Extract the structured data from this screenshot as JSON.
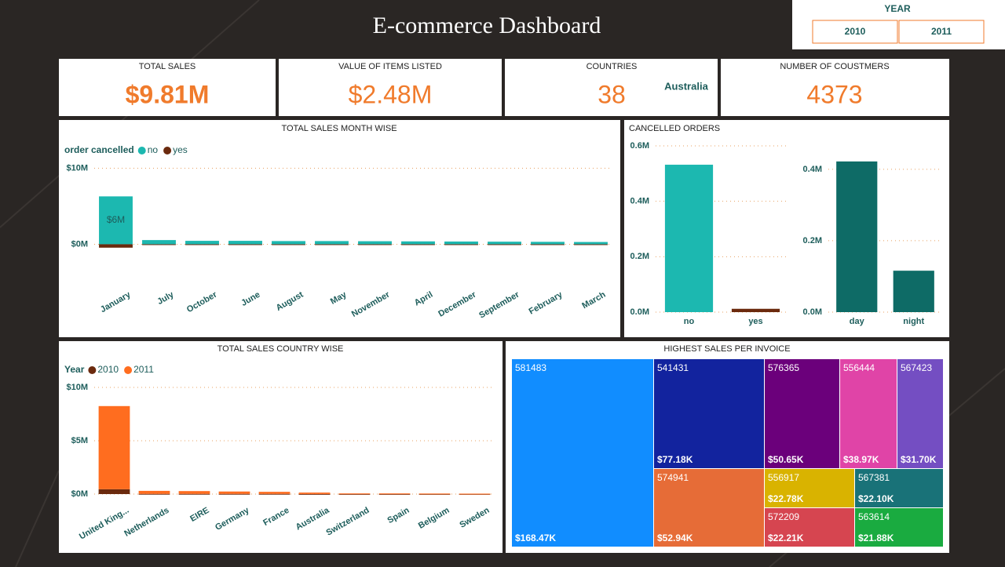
{
  "header": {
    "title": "E-commerce Dashboard"
  },
  "slicer": {
    "title": "YEAR",
    "options": [
      "2010",
      "2011"
    ]
  },
  "kpis": [
    {
      "label": "TOTAL SALES",
      "value": "$9.81M"
    },
    {
      "label": "VALUE OF ITEMS LISTED",
      "value": "$2.48M"
    },
    {
      "label": "COUNTRIES",
      "value": "38",
      "subtext": "Australia"
    },
    {
      "label": "NUMBER OF COUSTMERS",
      "value": "4373"
    }
  ],
  "chart_data": [
    {
      "type": "bar",
      "title": "TOTAL SALES MONTH WISE",
      "legend_title": "order cancelled",
      "categories": [
        "January",
        "July",
        "October",
        "June",
        "August",
        "May",
        "November",
        "April",
        "December",
        "September",
        "February",
        "March"
      ],
      "series": [
        {
          "name": "no",
          "color": "#1cb8b0",
          "values": [
            6.3,
            0.55,
            0.45,
            0.45,
            0.42,
            0.42,
            0.4,
            0.38,
            0.36,
            0.34,
            0.32,
            0.3
          ],
          "value_labels": [
            "$6M",
            null,
            null,
            null,
            null,
            null,
            null,
            null,
            null,
            null,
            null,
            null
          ]
        },
        {
          "name": "yes",
          "color": "#6b2a0e",
          "values": [
            -0.45,
            -0.05,
            -0.04,
            -0.03,
            -0.03,
            -0.03,
            -0.03,
            -0.03,
            -0.03,
            -0.03,
            -0.03,
            -0.04
          ]
        }
      ],
      "ylim": [
        -1.5,
        11.5
      ],
      "yticks": [
        {
          "value": 0,
          "label": "$0M"
        },
        {
          "value": 10,
          "label": "$10M"
        }
      ],
      "grid": true
    },
    {
      "type": "bar",
      "title": "CANCELLED ORDERS",
      "categories": [
        "no",
        "yes"
      ],
      "values": [
        0.532,
        0.012
      ],
      "colors": [
        "#1cb8b0",
        "#6b2a0e"
      ],
      "ylim": [
        0,
        0.6
      ],
      "yticks": [
        {
          "value": 0,
          "label": "0.0M"
        },
        {
          "value": 0.2,
          "label": "0.2M"
        },
        {
          "value": 0.4,
          "label": "0.4M"
        },
        {
          "value": 0.6,
          "label": "0.6M"
        }
      ],
      "grid": true
    },
    {
      "type": "bar",
      "categories": [
        "day",
        "night"
      ],
      "values": [
        0.422,
        0.116
      ],
      "color": "#0e6b66",
      "ylim": [
        0,
        0.47
      ],
      "yticks": [
        {
          "value": 0,
          "label": "0.0M"
        },
        {
          "value": 0.2,
          "label": "0.2M"
        },
        {
          "value": 0.4,
          "label": "0.4M"
        }
      ],
      "grid": true
    },
    {
      "type": "bar",
      "title": "TOTAL SALES COUNTRY WISE",
      "legend_title": "Year",
      "categories": [
        "United King...",
        "Netherlands",
        "EIRE",
        "Germany",
        "France",
        "Australia",
        "Switzerland",
        "Spain",
        "Belgium",
        "Sweden"
      ],
      "series": [
        {
          "name": "2010",
          "color": "#6b2a0e",
          "values": [
            0.45,
            0.02,
            0.02,
            0.02,
            0.02,
            0.01,
            0.01,
            0.01,
            0.01,
            0.01
          ]
        },
        {
          "name": "2011",
          "color": "#ff6d1f",
          "values": [
            7.8,
            0.28,
            0.26,
            0.22,
            0.19,
            0.13,
            0.05,
            0.05,
            0.04,
            0.03
          ]
        }
      ],
      "ylim": [
        0,
        11
      ],
      "yticks": [
        {
          "value": 0,
          "label": "$0M"
        },
        {
          "value": 5,
          "label": "$5M"
        },
        {
          "value": 10,
          "label": "$10M"
        }
      ],
      "grid": true
    },
    {
      "type": "treemap",
      "title": "HIGHEST SALES PER INVOICE",
      "categories": [
        "581483",
        "541431",
        "574941",
        "576365",
        "556444",
        "567423",
        "556917",
        "572209",
        "567381",
        "563614"
      ],
      "values": [
        168.47,
        77.18,
        52.94,
        50.65,
        38.97,
        31.7,
        22.78,
        22.21,
        22.1,
        21.88
      ],
      "value_labels": [
        "$168.47K",
        "$77.18K",
        "$52.94K",
        "$50.65K",
        "$38.97K",
        "$31.70K",
        "$22.78K",
        "$22.21K",
        "$22.10K",
        "$21.88K"
      ],
      "colors": [
        "#118dff",
        "#12239e",
        "#e66c37",
        "#6b007b",
        "#e044a7",
        "#744ec2",
        "#d9b300",
        "#d64550",
        "#197278",
        "#1aab40"
      ]
    }
  ]
}
